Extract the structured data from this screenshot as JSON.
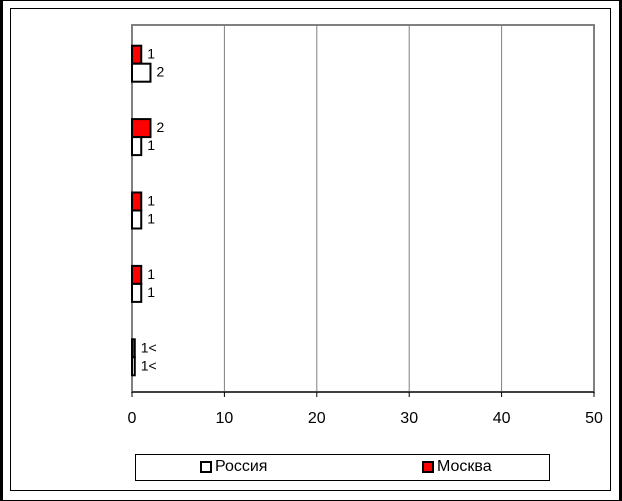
{
  "chart_data": {
    "type": "bar",
    "orientation": "horizontal",
    "title": "",
    "xlabel": "",
    "ylabel": "",
    "xlim": [
      0,
      50
    ],
    "x_ticks": [
      "0",
      "10",
      "20",
      "30",
      "40",
      "50"
    ],
    "categories": [
      "",
      "",
      "",
      "",
      ""
    ],
    "series": [
      {
        "name": "Москва",
        "color": "#ff0000",
        "values": [
          1,
          2,
          1,
          1,
          0.3
        ],
        "labels": [
          "1",
          "2",
          "1",
          "1",
          "1<"
        ]
      },
      {
        "name": "Россия",
        "color": "#ffffff",
        "values": [
          2,
          1,
          1,
          1,
          0.3
        ],
        "labels": [
          "2",
          "1",
          "1",
          "1",
          "1<"
        ]
      }
    ],
    "grid": true,
    "legend_position": "bottom"
  }
}
